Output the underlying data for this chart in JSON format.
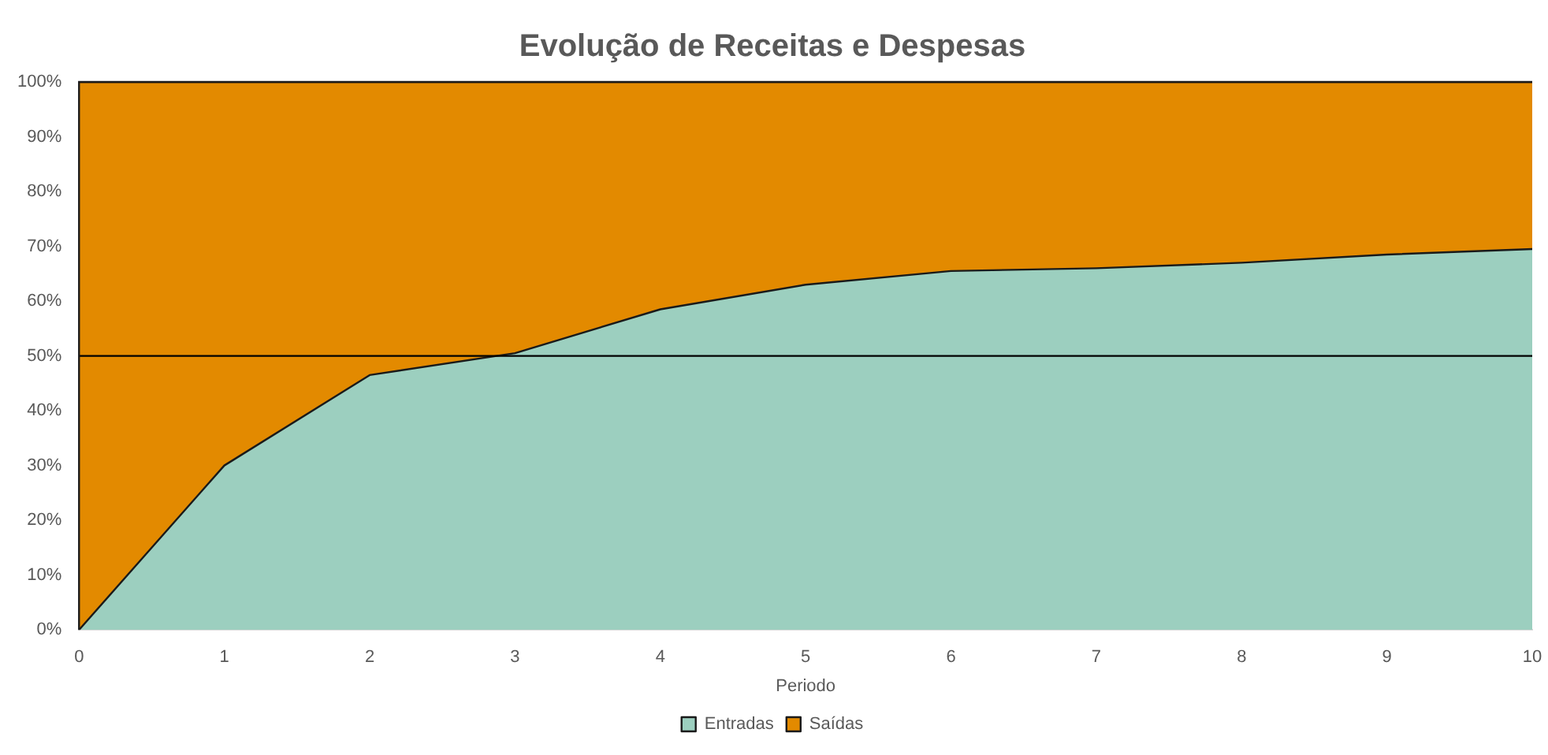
{
  "chart_data": {
    "type": "area",
    "title": "Evolução de Receitas e Despesas",
    "xlabel": "Periodo",
    "x": [
      0,
      1,
      2,
      3,
      4,
      5,
      6,
      7,
      8,
      9,
      10
    ],
    "stacked": true,
    "series": [
      {
        "name": "Entradas",
        "color": "#9ccfbf",
        "values": [
          0,
          30,
          46.5,
          50.5,
          58.5,
          63,
          65.5,
          66,
          67,
          68.5,
          69.5
        ]
      },
      {
        "name": "Saídas",
        "color": "#e38a00",
        "values": [
          100,
          70,
          53.5,
          49.5,
          41.5,
          37,
          34.5,
          34,
          33,
          31.5,
          30.5
        ]
      }
    ],
    "xlim": [
      0,
      10
    ],
    "xticks": [
      0,
      1,
      2,
      3,
      4,
      5,
      6,
      7,
      8,
      9,
      10
    ],
    "ylim": [
      0,
      100
    ],
    "yticks": [
      {
        "value": 0,
        "label": "0%"
      },
      {
        "value": 10,
        "label": "10%"
      },
      {
        "value": 20,
        "label": "20%"
      },
      {
        "value": 30,
        "label": "30%"
      },
      {
        "value": 40,
        "label": "40%"
      },
      {
        "value": 50,
        "label": "50%"
      },
      {
        "value": 60,
        "label": "60%"
      },
      {
        "value": 70,
        "label": "70%"
      },
      {
        "value": 80,
        "label": "80%"
      },
      {
        "value": 90,
        "label": "90%"
      },
      {
        "value": 100,
        "label": "100%"
      }
    ],
    "ref_lines": [
      {
        "axis": "y",
        "value": 50,
        "color": "#000000"
      }
    ],
    "grid": false,
    "legend": "bottom",
    "marker": "none",
    "line_style": "solid"
  }
}
